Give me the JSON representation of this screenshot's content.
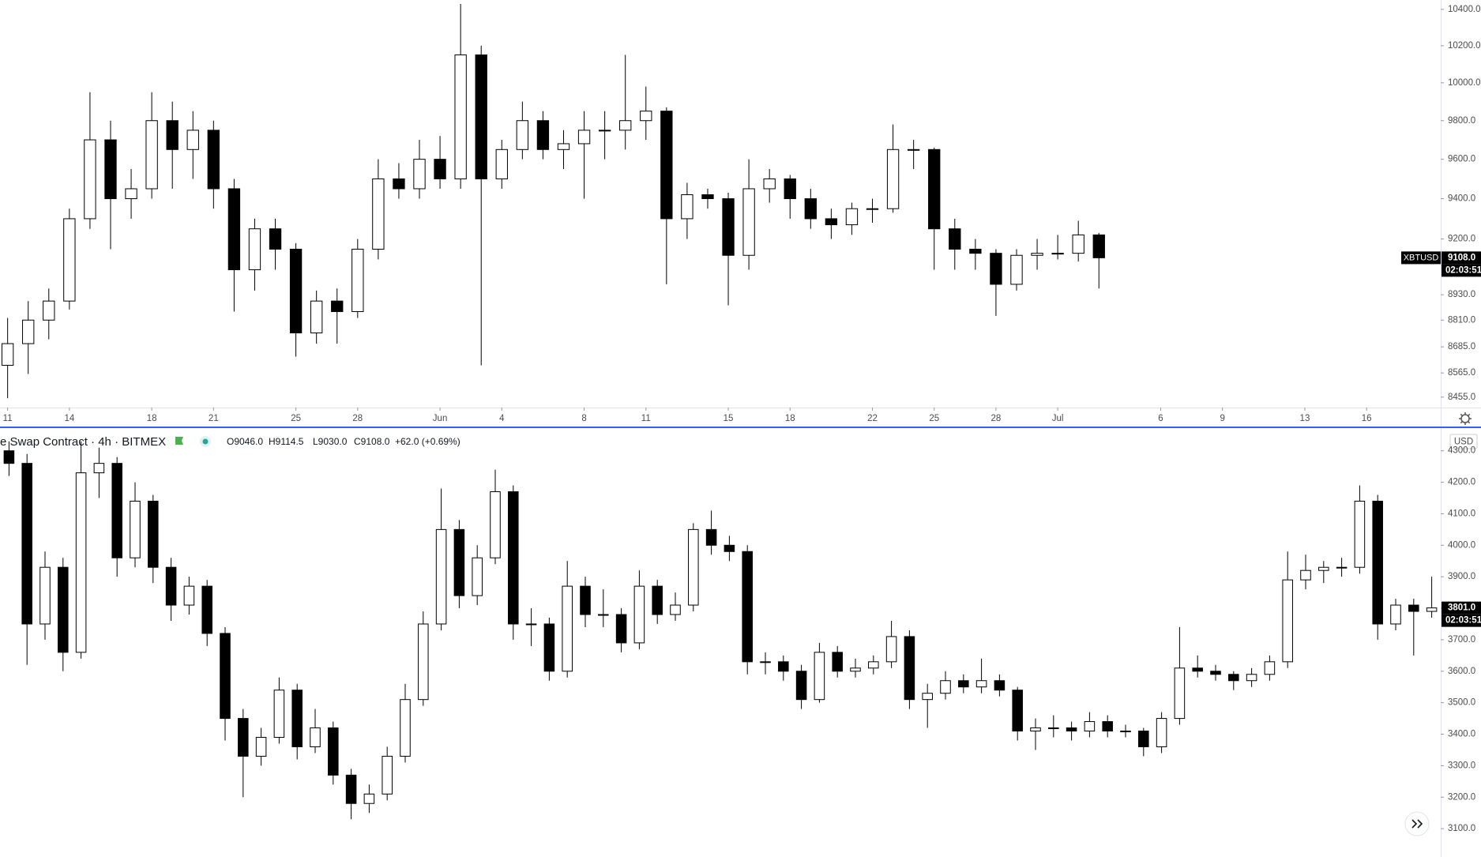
{
  "chart_data": [
    {
      "type": "candlestick",
      "log_scale": true,
      "up_color": "#ffffff",
      "down_color": "#000000",
      "border_color": "#000000",
      "x": [
        0,
        1,
        2,
        3,
        4,
        5,
        6,
        7,
        8,
        9,
        10,
        11,
        12,
        13,
        14,
        15,
        16,
        17,
        18,
        19,
        20,
        21,
        22,
        23,
        24,
        25,
        26,
        27,
        28,
        29,
        30,
        31,
        32,
        33,
        34,
        35,
        36,
        37,
        38,
        39,
        40,
        41,
        42,
        43,
        44,
        45,
        46,
        47,
        48,
        49,
        50,
        51,
        52,
        53
      ],
      "ohlc": [
        [
          8600,
          8820,
          8450,
          8700
        ],
        [
          8700,
          8900,
          8560,
          8810
        ],
        [
          8810,
          8960,
          8720,
          8900
        ],
        [
          8900,
          9350,
          8860,
          9300
        ],
        [
          9300,
          9950,
          9250,
          9700
        ],
        [
          9700,
          9800,
          9150,
          9400
        ],
        [
          9400,
          9550,
          9300,
          9450
        ],
        [
          9450,
          9950,
          9400,
          9800
        ],
        [
          9800,
          9900,
          9450,
          9650
        ],
        [
          9650,
          9850,
          9500,
          9750
        ],
        [
          9750,
          9800,
          9350,
          9450
        ],
        [
          9450,
          9500,
          8850,
          9050
        ],
        [
          9050,
          9300,
          8950,
          9250
        ],
        [
          9250,
          9300,
          9050,
          9150
        ],
        [
          9150,
          9180,
          8640,
          8750
        ],
        [
          8750,
          8950,
          8700,
          8900
        ],
        [
          8900,
          8960,
          8700,
          8850
        ],
        [
          8850,
          9200,
          8820,
          9150
        ],
        [
          9150,
          9600,
          9100,
          9500
        ],
        [
          9500,
          9580,
          9400,
          9450
        ],
        [
          9450,
          9700,
          9400,
          9600
        ],
        [
          9600,
          9720,
          9450,
          9500
        ],
        [
          9500,
          10430,
          9450,
          10150
        ],
        [
          10150,
          10200,
          8600,
          9500
        ],
        [
          9500,
          9700,
          9450,
          9650
        ],
        [
          9650,
          9900,
          9600,
          9800
        ],
        [
          9800,
          9850,
          9600,
          9650
        ],
        [
          9650,
          9750,
          9550,
          9680
        ],
        [
          9680,
          9850,
          9400,
          9750
        ],
        [
          9750,
          9850,
          9600,
          9750
        ],
        [
          9750,
          10150,
          9650,
          9800
        ],
        [
          9800,
          9980,
          9700,
          9850
        ],
        [
          9850,
          9870,
          8980,
          9300
        ],
        [
          9300,
          9480,
          9200,
          9420
        ],
        [
          9420,
          9450,
          9350,
          9400
        ],
        [
          9400,
          9430,
          8880,
          9120
        ],
        [
          9120,
          9600,
          9050,
          9450
        ],
        [
          9450,
          9550,
          9380,
          9500
        ],
        [
          9500,
          9520,
          9300,
          9400
        ],
        [
          9400,
          9450,
          9250,
          9300
        ],
        [
          9300,
          9350,
          9200,
          9270
        ],
        [
          9270,
          9380,
          9220,
          9350
        ],
        [
          9350,
          9400,
          9280,
          9350
        ],
        [
          9350,
          9780,
          9330,
          9650
        ],
        [
          9650,
          9700,
          9550,
          9650
        ],
        [
          9650,
          9660,
          9050,
          9250
        ],
        [
          9250,
          9300,
          9050,
          9150
        ],
        [
          9150,
          9200,
          9050,
          9130
        ],
        [
          9130,
          9150,
          8830,
          8980
        ],
        [
          8980,
          9150,
          8950,
          9120
        ],
        [
          9120,
          9200,
          9050,
          9130
        ],
        [
          9130,
          9220,
          9100,
          9130
        ],
        [
          9130,
          9290,
          9090,
          9220
        ],
        [
          9220,
          9230,
          8960,
          9108
        ]
      ],
      "xlim": [
        -0.37,
        69.6
      ],
      "xticks": [
        {
          "value": 0,
          "label": "11"
        },
        {
          "value": 3,
          "label": "14"
        },
        {
          "value": 7,
          "label": "18"
        },
        {
          "value": 10,
          "label": "21"
        },
        {
          "value": 14,
          "label": "25"
        },
        {
          "value": 17,
          "label": "28"
        },
        {
          "value": 21,
          "label": "Jun"
        },
        {
          "value": 24,
          "label": "4"
        },
        {
          "value": 28,
          "label": "8"
        },
        {
          "value": 31,
          "label": "11"
        },
        {
          "value": 35,
          "label": "15"
        },
        {
          "value": 38,
          "label": "18"
        },
        {
          "value": 42,
          "label": "22"
        },
        {
          "value": 45,
          "label": "25"
        },
        {
          "value": 48,
          "label": "28"
        },
        {
          "value": 51,
          "label": "Jul"
        },
        {
          "value": 56,
          "label": "6"
        },
        {
          "value": 59,
          "label": "9"
        },
        {
          "value": 63,
          "label": "13"
        },
        {
          "value": 66,
          "label": "16"
        }
      ],
      "ylim": [
        8408,
        10452
      ],
      "yticks": [
        {
          "value": 10400,
          "label": "10400.0"
        },
        {
          "value": 10200,
          "label": "10200.0"
        },
        {
          "value": 10000,
          "label": "10000.0"
        },
        {
          "value": 9800,
          "label": "9800.0"
        },
        {
          "value": 9600,
          "label": "9600.0"
        },
        {
          "value": 9400,
          "label": "9400.0"
        },
        {
          "value": 9200,
          "label": "9200.0"
        },
        {
          "value": 8930,
          "label": "8930.0"
        },
        {
          "value": 8810,
          "label": "8810.0"
        },
        {
          "value": 8685,
          "label": "8685.0"
        },
        {
          "value": 8565,
          "label": "8565.0"
        },
        {
          "value": 8455,
          "label": "8455.0"
        }
      ],
      "price_tag": {
        "symbol": "XBTUSD",
        "price": "9108.0",
        "countdown": "02:03:51"
      }
    },
    {
      "type": "candlestick",
      "log_scale": false,
      "up_color": "#ffffff",
      "down_color": "#000000",
      "border_color": "#000000",
      "legend": {
        "title": "e Swap Contract · 4h · BITMEX",
        "open": "O9046.0",
        "high": "H9114.5",
        "low": "L9030.0",
        "close": "C9108.0",
        "change": "+62.0 (+0.69%)"
      },
      "ohlc": [
        [
          4300,
          4330,
          4220,
          4260
        ],
        [
          4260,
          4290,
          3620,
          3750
        ],
        [
          3750,
          3980,
          3700,
          3930
        ],
        [
          3930,
          3960,
          3600,
          3660
        ],
        [
          3660,
          4330,
          3640,
          4230
        ],
        [
          4230,
          4310,
          4150,
          4260
        ],
        [
          4260,
          4280,
          3900,
          3960
        ],
        [
          3960,
          4200,
          3930,
          4140
        ],
        [
          4140,
          4160,
          3880,
          3930
        ],
        [
          3930,
          3960,
          3760,
          3810
        ],
        [
          3810,
          3900,
          3780,
          3870
        ],
        [
          3870,
          3890,
          3680,
          3720
        ],
        [
          3720,
          3740,
          3380,
          3450
        ],
        [
          3450,
          3480,
          3200,
          3330
        ],
        [
          3330,
          3420,
          3300,
          3390
        ],
        [
          3390,
          3580,
          3370,
          3540
        ],
        [
          3540,
          3560,
          3320,
          3360
        ],
        [
          3360,
          3480,
          3340,
          3420
        ],
        [
          3420,
          3440,
          3240,
          3270
        ],
        [
          3270,
          3290,
          3130,
          3180
        ],
        [
          3180,
          3240,
          3150,
          3210
        ],
        [
          3210,
          3360,
          3190,
          3330
        ],
        [
          3330,
          3560,
          3310,
          3510
        ],
        [
          3510,
          3790,
          3490,
          3750
        ],
        [
          3750,
          4180,
          3730,
          4050
        ],
        [
          4050,
          4080,
          3800,
          3840
        ],
        [
          3840,
          4000,
          3810,
          3960
        ],
        [
          3960,
          4240,
          3940,
          4170
        ],
        [
          4170,
          4190,
          3700,
          3750
        ],
        [
          3750,
          3800,
          3680,
          3750
        ],
        [
          3750,
          3770,
          3570,
          3600
        ],
        [
          3600,
          3950,
          3580,
          3870
        ],
        [
          3870,
          3900,
          3740,
          3780
        ],
        [
          3780,
          3860,
          3740,
          3780
        ],
        [
          3780,
          3800,
          3660,
          3690
        ],
        [
          3690,
          3920,
          3670,
          3870
        ],
        [
          3870,
          3890,
          3750,
          3780
        ],
        [
          3780,
          3850,
          3760,
          3810
        ],
        [
          3810,
          4070,
          3790,
          4050
        ],
        [
          4050,
          4110,
          3970,
          4000
        ],
        [
          4000,
          4030,
          3950,
          3980
        ],
        [
          3980,
          4000,
          3590,
          3630
        ],
        [
          3630,
          3660,
          3590,
          3630
        ],
        [
          3630,
          3650,
          3570,
          3600
        ],
        [
          3600,
          3620,
          3480,
          3510
        ],
        [
          3510,
          3690,
          3500,
          3660
        ],
        [
          3660,
          3680,
          3580,
          3600
        ],
        [
          3600,
          3640,
          3580,
          3610
        ],
        [
          3610,
          3650,
          3590,
          3630
        ],
        [
          3630,
          3760,
          3610,
          3710
        ],
        [
          3710,
          3730,
          3480,
          3510
        ],
        [
          3510,
          3560,
          3420,
          3530
        ],
        [
          3530,
          3600,
          3510,
          3570
        ],
        [
          3570,
          3590,
          3530,
          3550
        ],
        [
          3550,
          3640,
          3530,
          3570
        ],
        [
          3570,
          3590,
          3520,
          3540
        ],
        [
          3540,
          3550,
          3380,
          3410
        ],
        [
          3410,
          3450,
          3350,
          3420
        ],
        [
          3420,
          3460,
          3390,
          3420
        ],
        [
          3420,
          3440,
          3380,
          3410
        ],
        [
          3410,
          3470,
          3390,
          3440
        ],
        [
          3440,
          3460,
          3390,
          3410
        ],
        [
          3410,
          3430,
          3390,
          3410
        ],
        [
          3410,
          3420,
          3330,
          3360
        ],
        [
          3360,
          3470,
          3340,
          3450
        ],
        [
          3450,
          3740,
          3430,
          3610
        ],
        [
          3610,
          3650,
          3580,
          3600
        ],
        [
          3600,
          3620,
          3570,
          3590
        ],
        [
          3590,
          3600,
          3540,
          3570
        ],
        [
          3570,
          3610,
          3550,
          3590
        ],
        [
          3590,
          3650,
          3570,
          3630
        ],
        [
          3630,
          3980,
          3610,
          3890
        ],
        [
          3890,
          3970,
          3860,
          3920
        ],
        [
          3920,
          3950,
          3880,
          3930
        ],
        [
          3930,
          3960,
          3900,
          3930
        ],
        [
          3930,
          4190,
          3910,
          4140
        ],
        [
          4140,
          4160,
          3700,
          3750
        ],
        [
          3750,
          3830,
          3730,
          3810
        ],
        [
          3810,
          3830,
          3650,
          3790
        ],
        [
          3790,
          3900,
          3770,
          3801
        ]
      ],
      "ylim": [
        3010,
        4372
      ],
      "yticks": [
        {
          "value": 4300,
          "label": "4300.0"
        },
        {
          "value": 4200,
          "label": "4200.0"
        },
        {
          "value": 4100,
          "label": "4100.0"
        },
        {
          "value": 4000,
          "label": "4000.0"
        },
        {
          "value": 3900,
          "label": "3900.0"
        },
        {
          "value": 3800,
          "label": "3800.0"
        },
        {
          "value": 3700,
          "label": "3700.0"
        },
        {
          "value": 3600,
          "label": "3600.0"
        },
        {
          "value": 3500,
          "label": "3500.0"
        },
        {
          "value": 3400,
          "label": "3400.0"
        },
        {
          "value": 3300,
          "label": "3300.0"
        },
        {
          "value": 3200,
          "label": "3200.0"
        },
        {
          "value": 3100,
          "label": "3100.0"
        }
      ],
      "currency": "USD",
      "price_tag": {
        "price": "3801.0",
        "countdown": "02:03:51"
      }
    }
  ]
}
